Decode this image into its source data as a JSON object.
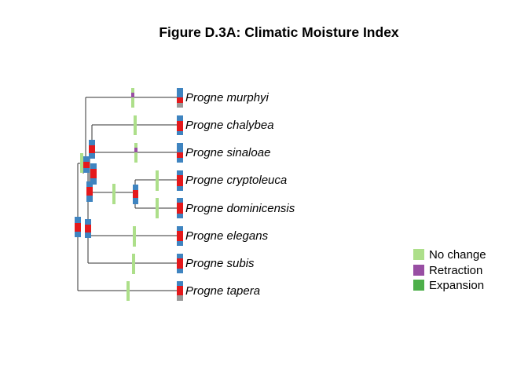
{
  "title": "Figure D.3A: Climatic Moisture Index",
  "taxa": [
    "Progne murphyi",
    "Progne chalybea",
    "Progne sinaloae",
    "Progne cryptoleuca",
    "Progne dominicensis",
    "Progne elegans",
    "Progne subis",
    "Progne tapera"
  ],
  "legend": [
    {
      "label": "No change",
      "color": "#addf8a"
    },
    {
      "label": "Retraction",
      "color": "#984ea3"
    },
    {
      "label": "Expansion",
      "color": "#4daf4a"
    }
  ],
  "colors": {
    "no_change": "#addf8a",
    "retraction": "#984ea3",
    "expansion": "#4daf4a",
    "node_blue": "#3f84c0",
    "node_red": "#e4191c",
    "node_grey": "#999999",
    "branch": "#333333"
  }
}
